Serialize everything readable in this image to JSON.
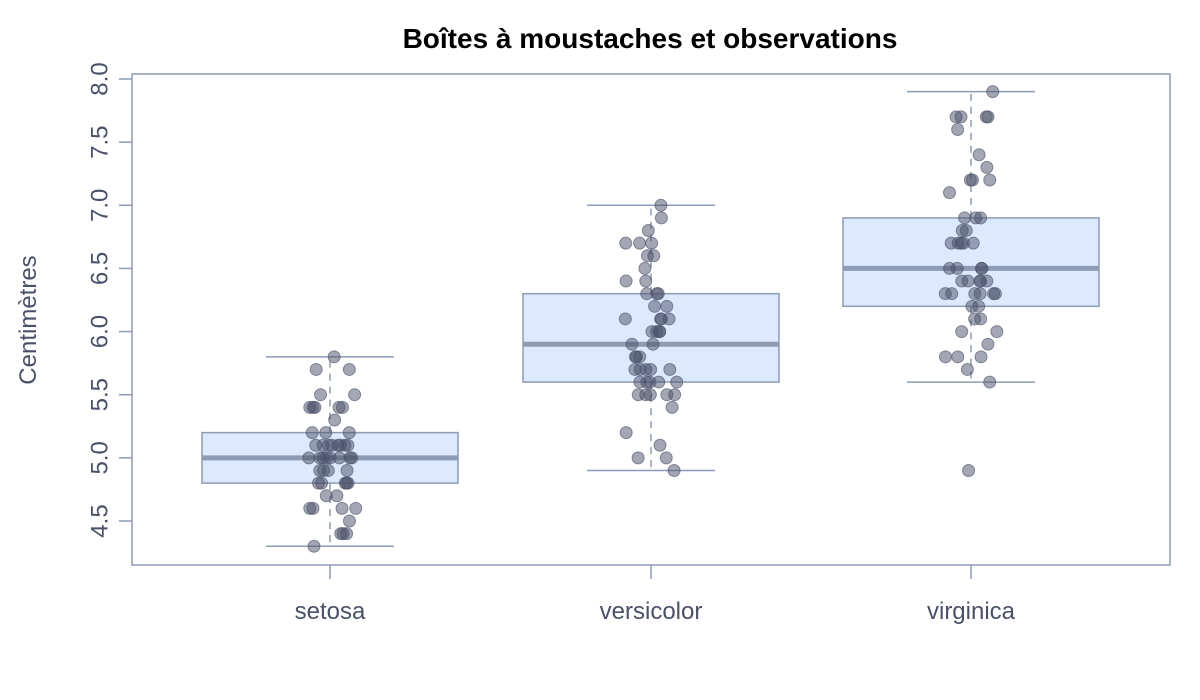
{
  "chart_data": {
    "type": "box",
    "title": "Boîtes à moustaches et observations",
    "xlabel": "",
    "ylabel": "Centimètres",
    "ylim": [
      4.2,
      8.05
    ],
    "yticks": [
      4.5,
      5.0,
      5.5,
      6.0,
      6.5,
      7.0,
      7.5,
      8.0
    ],
    "ytick_labels": [
      "4.5",
      "5.0",
      "5.5",
      "6.0",
      "6.5",
      "7.0",
      "7.5",
      "8.0"
    ],
    "categories": [
      "setosa",
      "versicolor",
      "virginica"
    ],
    "boxes": [
      {
        "category": "setosa",
        "whisker_low": 4.3,
        "q1": 4.8,
        "median": 5.0,
        "q3": 5.2,
        "whisker_high": 5.8,
        "outliers": []
      },
      {
        "category": "versicolor",
        "whisker_low": 4.9,
        "q1": 5.6,
        "median": 5.9,
        "q3": 6.3,
        "whisker_high": 7.0,
        "outliers": []
      },
      {
        "category": "virginica",
        "whisker_low": 5.6,
        "q1": 6.2,
        "median": 6.5,
        "q3": 6.9,
        "whisker_high": 7.9,
        "outliers": [
          4.9
        ]
      }
    ],
    "points": [
      {
        "category": "setosa",
        "values": [
          5.1,
          4.9,
          4.7,
          4.6,
          5.0,
          5.4,
          4.6,
          5.0,
          4.4,
          4.9,
          5.4,
          4.8,
          4.8,
          4.3,
          5.8,
          5.7,
          5.4,
          5.1,
          5.7,
          5.1,
          5.4,
          5.1,
          4.6,
          5.1,
          4.8,
          5.0,
          5.0,
          5.2,
          5.2,
          4.7,
          4.8,
          5.4,
          5.2,
          5.5,
          4.9,
          5.0,
          5.5,
          4.9,
          4.4,
          5.1,
          5.0,
          4.5,
          4.4,
          5.0,
          5.1,
          4.8,
          5.1,
          4.6,
          5.3,
          5.0
        ]
      },
      {
        "category": "versicolor",
        "values": [
          7.0,
          6.4,
          6.9,
          5.5,
          6.5,
          5.7,
          6.3,
          4.9,
          6.6,
          5.2,
          5.0,
          5.9,
          6.0,
          6.1,
          5.6,
          6.7,
          5.6,
          5.8,
          6.2,
          5.6,
          5.9,
          6.1,
          6.3,
          6.1,
          6.4,
          6.6,
          6.8,
          6.7,
          6.0,
          5.7,
          5.5,
          5.5,
          5.8,
          6.0,
          5.4,
          6.0,
          6.7,
          6.3,
          5.6,
          5.5,
          5.5,
          6.1,
          5.8,
          5.0,
          5.6,
          5.7,
          5.7,
          6.2,
          5.1,
          5.7
        ]
      },
      {
        "category": "virginica",
        "values": [
          6.3,
          5.8,
          7.1,
          6.3,
          6.5,
          7.6,
          4.9,
          7.3,
          6.7,
          7.2,
          6.5,
          6.4,
          6.8,
          5.7,
          5.8,
          6.4,
          6.5,
          7.7,
          7.7,
          6.0,
          6.9,
          5.6,
          7.7,
          6.3,
          6.7,
          7.2,
          6.2,
          6.1,
          6.4,
          7.2,
          7.4,
          7.9,
          6.4,
          6.3,
          6.1,
          7.7,
          6.3,
          6.4,
          6.0,
          6.9,
          6.7,
          6.9,
          5.8,
          6.8,
          6.7,
          6.7,
          6.3,
          6.5,
          6.2,
          5.9
        ]
      }
    ],
    "grid": false,
    "colors": {
      "box_fill": "#dce9ff",
      "box_stroke": "#8e9bb5",
      "median": "#8e9bb5",
      "whisker": "#8e9bb5",
      "point": "#4a5068",
      "axis": "#8e9bb5",
      "text": "#4a5068"
    }
  }
}
